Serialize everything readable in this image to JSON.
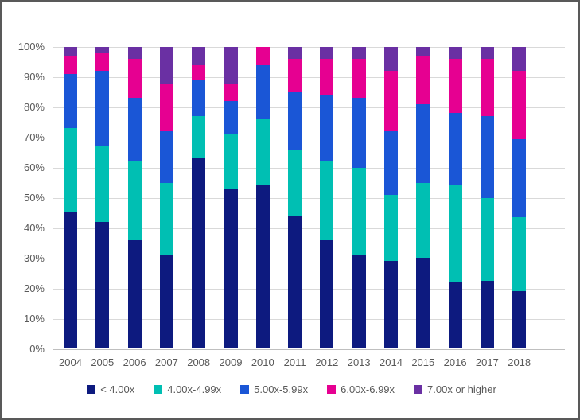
{
  "chart_data": {
    "type": "bar",
    "stacked": true,
    "percent_stacked": true,
    "title": "",
    "xlabel": "",
    "ylabel": "",
    "categories": [
      "2004",
      "2005",
      "2006",
      "2007",
      "2008",
      "2009",
      "2010",
      "2011",
      "2012",
      "2013",
      "2014",
      "2015",
      "2016",
      "2017",
      "2018"
    ],
    "series": [
      {
        "name": "< 4.00x",
        "color": "#0d1a7f",
        "values": [
          45,
          42,
          36,
          31,
          63,
          53,
          54,
          44,
          36,
          31,
          29,
          30,
          22,
          22.5,
          19
        ]
      },
      {
        "name": "4.00x-4.99x",
        "color": "#00bfb3",
        "values": [
          28,
          25,
          26,
          24,
          14,
          18,
          22,
          22,
          26,
          29,
          22,
          25,
          32,
          27.5,
          24.5
        ]
      },
      {
        "name": "5.00x-5.99x",
        "color": "#1a56d6",
        "values": [
          18,
          25,
          21,
          17,
          12,
          11,
          18,
          19,
          22,
          23,
          21,
          26,
          24,
          27,
          26
        ]
      },
      {
        "name": "6.00x-6.99x",
        "color": "#e60091",
        "values": [
          6,
          6,
          13,
          16,
          5,
          6,
          6,
          11,
          12,
          13,
          20,
          16,
          18,
          19,
          22.5
        ]
      },
      {
        "name": "7.00x or higher",
        "color": "#6a30a3",
        "values": [
          3,
          2,
          4,
          12,
          6,
          12,
          0,
          4,
          4,
          4,
          8,
          3,
          4,
          4,
          8
        ]
      }
    ],
    "y_ticks": [
      "0%",
      "10%",
      "20%",
      "30%",
      "40%",
      "50%",
      "60%",
      "70%",
      "80%",
      "90%",
      "100%"
    ],
    "ylim": [
      0,
      100
    ],
    "grid": true,
    "legend_position": "bottom"
  },
  "style_colors": {
    "gridline": "#d9d9d9",
    "axis_line": "#bfbfbf",
    "label_text": "#595959",
    "frame_border": "#595959",
    "background": "#ffffff"
  }
}
